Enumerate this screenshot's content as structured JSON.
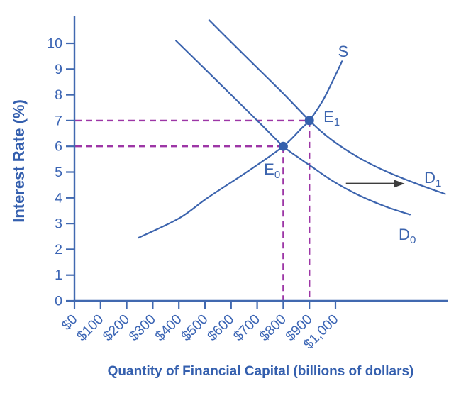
{
  "chart_data": {
    "type": "line",
    "title": "",
    "xlabel": "Quantity of Financial Capital (billions of dollars)",
    "ylabel": "Interest Rate (%)",
    "grid": false,
    "legend": false,
    "x_axis": {
      "min": 0,
      "max": 1000,
      "tick_step": 100,
      "tick_labels": [
        "$0",
        "$100",
        "$200",
        "$300",
        "$400",
        "$500",
        "$600",
        "$700",
        "$800",
        "$900",
        "$1,000"
      ],
      "label_rotation_deg": -45
    },
    "y_axis": {
      "min": 0,
      "max": 10,
      "tick_step": 1,
      "tick_labels": [
        "0",
        "1",
        "2",
        "3",
        "4",
        "5",
        "6",
        "7",
        "8",
        "9",
        "10"
      ]
    },
    "series": [
      {
        "name": "S",
        "role": "supply-curve",
        "points": [
          [
            245,
            2.45
          ],
          [
            400,
            3.2
          ],
          [
            510,
            4.0
          ],
          [
            660,
            5.0
          ],
          [
            800,
            6.0
          ],
          [
            870,
            6.7
          ],
          [
            900,
            7.0
          ],
          [
            950,
            7.75
          ],
          [
            990,
            8.55
          ],
          [
            1025,
            9.3
          ]
        ]
      },
      {
        "name": "D0",
        "role": "demand-curve-d0",
        "points": [
          [
            389,
            10.1
          ],
          [
            500,
            9.0
          ],
          [
            620,
            7.8
          ],
          [
            715,
            6.85
          ],
          [
            800,
            6.0
          ],
          [
            860,
            5.55
          ],
          [
            910,
            5.2
          ],
          [
            990,
            4.65
          ],
          [
            1090,
            4.1
          ],
          [
            1195,
            3.65
          ],
          [
            1285,
            3.35
          ]
        ]
      },
      {
        "name": "D1",
        "role": "demand-curve-d1",
        "points": [
          [
            516,
            10.9
          ],
          [
            600,
            10.05
          ],
          [
            700,
            9.05
          ],
          [
            800,
            8.05
          ],
          [
            900,
            7.0
          ],
          [
            960,
            6.45
          ],
          [
            1020,
            6.0
          ],
          [
            1100,
            5.5
          ],
          [
            1200,
            5.0
          ],
          [
            1310,
            4.55
          ],
          [
            1420,
            4.15
          ]
        ]
      }
    ],
    "equilibria": [
      {
        "name": "e0",
        "x": 800,
        "y": 6
      },
      {
        "name": "e1",
        "x": 900,
        "y": 7
      }
    ],
    "curve_labels": [
      {
        "id": "s",
        "text": "S",
        "sub": "",
        "x": 1010,
        "y": 9.48
      },
      {
        "id": "d1",
        "text": "D",
        "sub": "1",
        "x": 1340,
        "y": 4.57
      },
      {
        "id": "d0",
        "text": "D",
        "sub": "0",
        "x": 1242,
        "y": 2.37
      },
      {
        "id": "e0",
        "text": "E",
        "sub": "0",
        "x": 726,
        "y": 4.9
      },
      {
        "id": "e1",
        "text": "E",
        "sub": "1",
        "x": 954,
        "y": 6.94
      }
    ],
    "shift_arrow": {
      "x1": 1040,
      "y1": 4.55,
      "x2": 1265,
      "y2": 4.55
    },
    "colors": {
      "curve": "#3c64ae",
      "axis": "#4169b0",
      "tick_text": "#3a64b4",
      "title_text": "#345fae",
      "dashed_guide": "#9d36a6",
      "equilibrium_point": "#3560ad",
      "arrow": "#3d3d3d",
      "background": "#ffffff"
    }
  }
}
